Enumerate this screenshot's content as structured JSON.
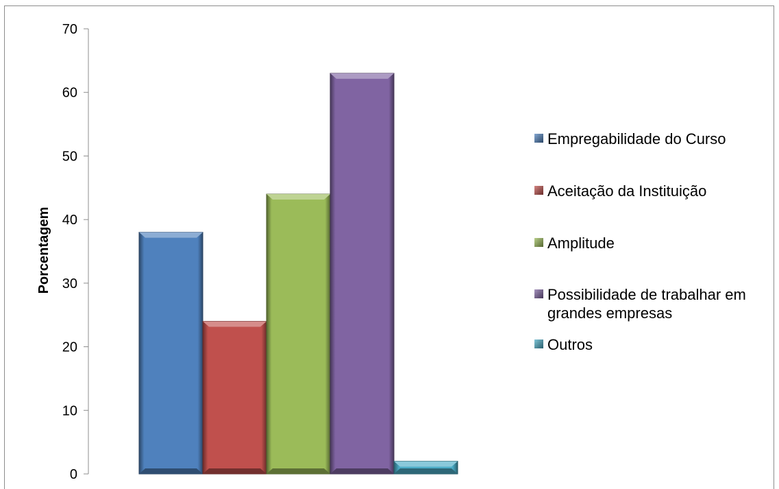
{
  "chart_data": {
    "type": "bar",
    "title": "",
    "xlabel": "",
    "ylabel": "Porcentagem",
    "ylim": [
      0,
      70
    ],
    "yticks": [
      0,
      10,
      20,
      30,
      40,
      50,
      60,
      70
    ],
    "grid": false,
    "legend_position": "right",
    "series": [
      {
        "name": "Empregabilidade do Curso",
        "value": 38,
        "color": "#4f81bd"
      },
      {
        "name": "Aceitação da Instituição",
        "value": 24,
        "color": "#c0504d"
      },
      {
        "name": "Amplitude",
        "value": 44,
        "color": "#9bbb59"
      },
      {
        "name": "Possibilidade de trabalhar em grandes empresas",
        "value": 63,
        "color": "#8064a2"
      },
      {
        "name": "Outros",
        "value": 2,
        "color": "#4bacc6"
      }
    ]
  }
}
